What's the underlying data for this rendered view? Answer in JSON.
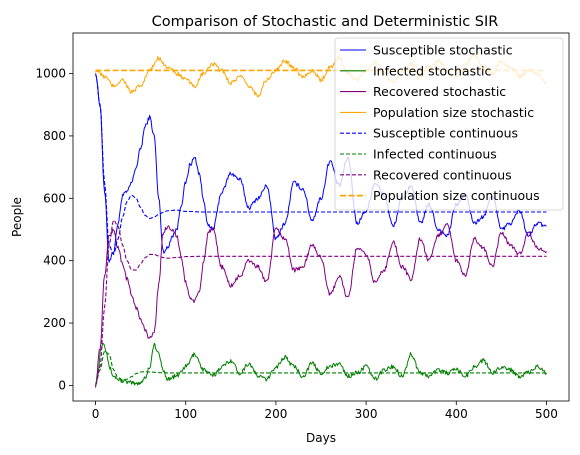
{
  "chart_data": {
    "type": "line",
    "title": "Comparison of Stochastic and Deterministic SIR",
    "xlabel": "Days",
    "ylabel": "People",
    "xlim": [
      -25,
      525
    ],
    "ylim": [
      -50,
      1130
    ],
    "xticks": [
      0,
      100,
      200,
      300,
      400,
      500
    ],
    "yticks": [
      0,
      200,
      400,
      600,
      800,
      1000
    ],
    "grid": false,
    "legend_position": "top-right",
    "series": [
      {
        "name": "Susceptible stochastic",
        "color": "#0000ff",
        "style": "solid",
        "x": [
          0,
          5,
          10,
          15,
          20,
          25,
          30,
          35,
          40,
          45,
          50,
          55,
          60,
          65,
          70,
          75,
          80,
          85,
          90,
          95,
          100,
          105,
          110,
          115,
          120,
          125,
          130,
          140,
          150,
          160,
          170,
          180,
          190,
          200,
          210,
          220,
          230,
          240,
          250,
          260,
          270,
          280,
          290,
          300,
          310,
          320,
          330,
          340,
          350,
          360,
          370,
          380,
          390,
          400,
          410,
          420,
          430,
          440,
          450,
          460,
          470,
          480,
          490,
          500
        ],
        "y": [
          1000,
          900,
          620,
          400,
          430,
          520,
          610,
          620,
          650,
          700,
          760,
          830,
          860,
          800,
          600,
          430,
          440,
          480,
          500,
          580,
          650,
          710,
          730,
          680,
          590,
          510,
          500,
          620,
          680,
          660,
          570,
          600,
          640,
          470,
          520,
          650,
          630,
          530,
          600,
          720,
          640,
          730,
          520,
          560,
          650,
          610,
          510,
          600,
          640,
          520,
          580,
          500,
          480,
          580,
          610,
          520,
          540,
          610,
          500,
          520,
          560,
          480,
          520,
          510
        ]
      },
      {
        "name": "Infected stochastic",
        "color": "#008000",
        "style": "solid",
        "x": [
          0,
          3,
          6,
          9,
          12,
          15,
          20,
          25,
          30,
          35,
          40,
          45,
          50,
          55,
          60,
          65,
          70,
          75,
          80,
          90,
          100,
          110,
          120,
          130,
          140,
          150,
          160,
          170,
          180,
          190,
          200,
          210,
          220,
          230,
          240,
          250,
          260,
          270,
          280,
          290,
          300,
          310,
          320,
          330,
          340,
          350,
          360,
          370,
          380,
          390,
          400,
          410,
          420,
          430,
          440,
          450,
          460,
          470,
          480,
          490,
          500
        ],
        "y": [
          5,
          50,
          120,
          140,
          110,
          60,
          30,
          20,
          15,
          10,
          8,
          5,
          10,
          25,
          60,
          130,
          100,
          50,
          20,
          30,
          60,
          100,
          50,
          30,
          60,
          80,
          40,
          70,
          30,
          20,
          60,
          90,
          60,
          30,
          70,
          40,
          60,
          70,
          30,
          40,
          60,
          20,
          50,
          60,
          30,
          100,
          40,
          30,
          50,
          40,
          50,
          30,
          60,
          80,
          40,
          60,
          50,
          30,
          40,
          60,
          40
        ]
      },
      {
        "name": "Recovered stochastic",
        "color": "#800080",
        "style": "solid",
        "x": [
          0,
          5,
          10,
          15,
          20,
          25,
          30,
          35,
          40,
          45,
          50,
          55,
          60,
          65,
          70,
          75,
          80,
          85,
          90,
          95,
          100,
          105,
          110,
          115,
          120,
          125,
          130,
          140,
          150,
          160,
          170,
          180,
          190,
          200,
          210,
          220,
          230,
          240,
          250,
          260,
          270,
          280,
          290,
          300,
          310,
          320,
          330,
          340,
          350,
          360,
          370,
          380,
          390,
          400,
          410,
          420,
          430,
          440,
          450,
          460,
          470,
          480,
          490,
          500
        ],
        "y": [
          0,
          120,
          350,
          480,
          500,
          440,
          390,
          340,
          290,
          250,
          210,
          180,
          150,
          170,
          320,
          490,
          510,
          500,
          480,
          410,
          330,
          280,
          270,
          300,
          400,
          490,
          500,
          380,
          320,
          350,
          400,
          380,
          330,
          500,
          470,
          370,
          380,
          450,
          410,
          290,
          350,
          280,
          440,
          420,
          330,
          370,
          460,
          380,
          340,
          470,
          400,
          480,
          520,
          400,
          350,
          470,
          440,
          380,
          490,
          450,
          420,
          490,
          440,
          430
        ]
      },
      {
        "name": "Population size stochastic",
        "color": "#ffa500",
        "style": "solid",
        "x": [
          0,
          10,
          20,
          30,
          40,
          50,
          60,
          70,
          80,
          90,
          100,
          110,
          120,
          130,
          140,
          150,
          160,
          170,
          180,
          190,
          200,
          210,
          220,
          230,
          240,
          250,
          260,
          270,
          280,
          290,
          300,
          310,
          320,
          330,
          340,
          350,
          360,
          370,
          380,
          390,
          400,
          410,
          420,
          430,
          440,
          450,
          460,
          470,
          480,
          490,
          500
        ],
        "y": [
          1010,
          990,
          960,
          980,
          940,
          960,
          1010,
          1050,
          1020,
          1000,
          980,
          960,
          1000,
          1030,
          1010,
          970,
          990,
          960,
          930,
          980,
          1010,
          1040,
          1020,
          990,
          1010,
          980,
          1020,
          1050,
          1000,
          980,
          1010,
          1040,
          1000,
          970,
          1010,
          1030,
          990,
          1020,
          1040,
          1010,
          990,
          1030,
          1060,
          1020,
          1000,
          1040,
          1020,
          990,
          1010,
          1000,
          970
        ]
      },
      {
        "name": "Susceptible continuous",
        "color": "#0000ff",
        "style": "dashed",
        "x": [
          0,
          5,
          10,
          15,
          20,
          25,
          30,
          35,
          40,
          45,
          50,
          55,
          60,
          65,
          70,
          75,
          80,
          90,
          100,
          120,
          150,
          200,
          300,
          400,
          500
        ],
        "y": [
          1000,
          900,
          650,
          450,
          420,
          470,
          540,
          590,
          610,
          600,
          570,
          545,
          535,
          540,
          548,
          555,
          560,
          562,
          558,
          556,
          556,
          556,
          556,
          556,
          556
        ]
      },
      {
        "name": "Infected continuous",
        "color": "#008000",
        "style": "dashed",
        "x": [
          0,
          5,
          10,
          15,
          20,
          25,
          30,
          35,
          40,
          45,
          50,
          55,
          60,
          70,
          80,
          100,
          150,
          200,
          300,
          400,
          500
        ],
        "y": [
          5,
          50,
          110,
          100,
          50,
          25,
          18,
          20,
          28,
          38,
          43,
          44,
          43,
          41,
          40,
          40,
          40,
          40,
          40,
          40,
          40
        ]
      },
      {
        "name": "Recovered continuous",
        "color": "#800080",
        "style": "dashed",
        "x": [
          0,
          5,
          10,
          15,
          20,
          25,
          30,
          35,
          40,
          45,
          50,
          55,
          60,
          65,
          70,
          75,
          80,
          90,
          100,
          120,
          150,
          200,
          300,
          400,
          500
        ],
        "y": [
          0,
          60,
          250,
          450,
          530,
          510,
          450,
          400,
          370,
          370,
          390,
          410,
          420,
          420,
          415,
          410,
          408,
          410,
          413,
          414,
          414,
          414,
          414,
          414,
          414
        ]
      },
      {
        "name": "Population size continuous",
        "color": "#ffa500",
        "style": "dashed",
        "x": [
          0,
          500
        ],
        "y": [
          1010,
          1010
        ]
      }
    ]
  }
}
